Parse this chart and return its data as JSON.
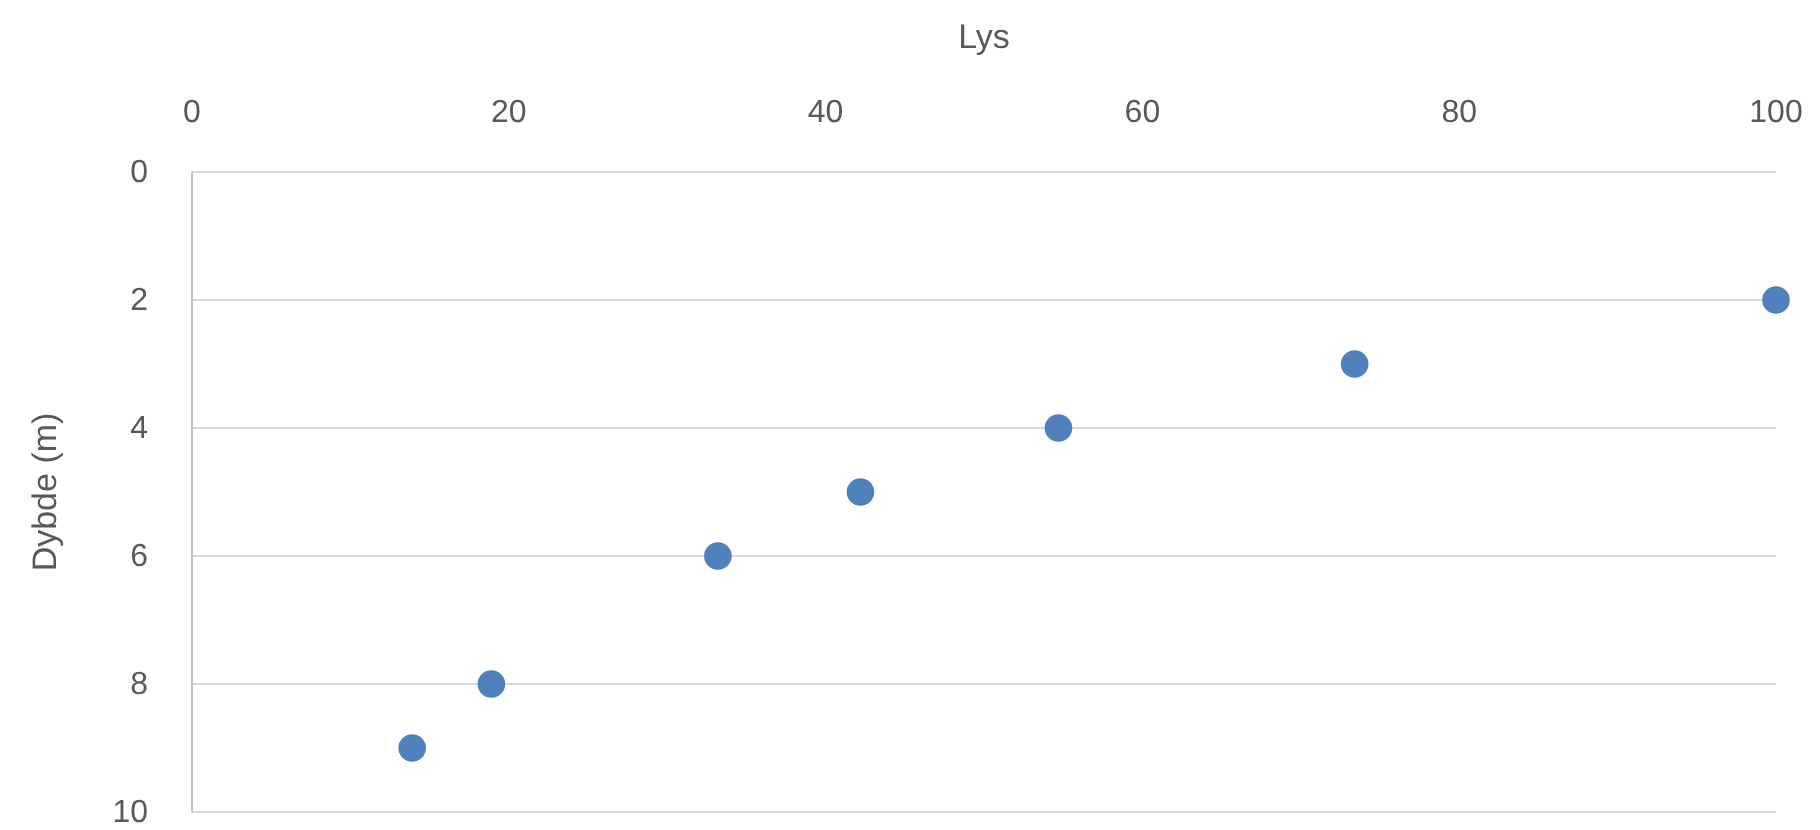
{
  "chart_data": {
    "type": "scatter",
    "xlabel": "Lys",
    "ylabel": "Dybde (m)",
    "x": [
      13.9,
      18.9,
      33.2,
      42.2,
      54.7,
      73.4,
      100
    ],
    "series": [
      {
        "color": "#4f81bd",
        "values": [
          9,
          8,
          6,
          5,
          4,
          3,
          2
        ]
      }
    ],
    "xlim": [
      0,
      100
    ],
    "xticks": [
      0,
      20,
      40,
      60,
      80,
      100
    ],
    "ylim": [
      10,
      0
    ],
    "yticks": [
      0,
      2,
      4,
      6,
      8,
      10
    ],
    "grid": "y",
    "marker": "circle"
  }
}
